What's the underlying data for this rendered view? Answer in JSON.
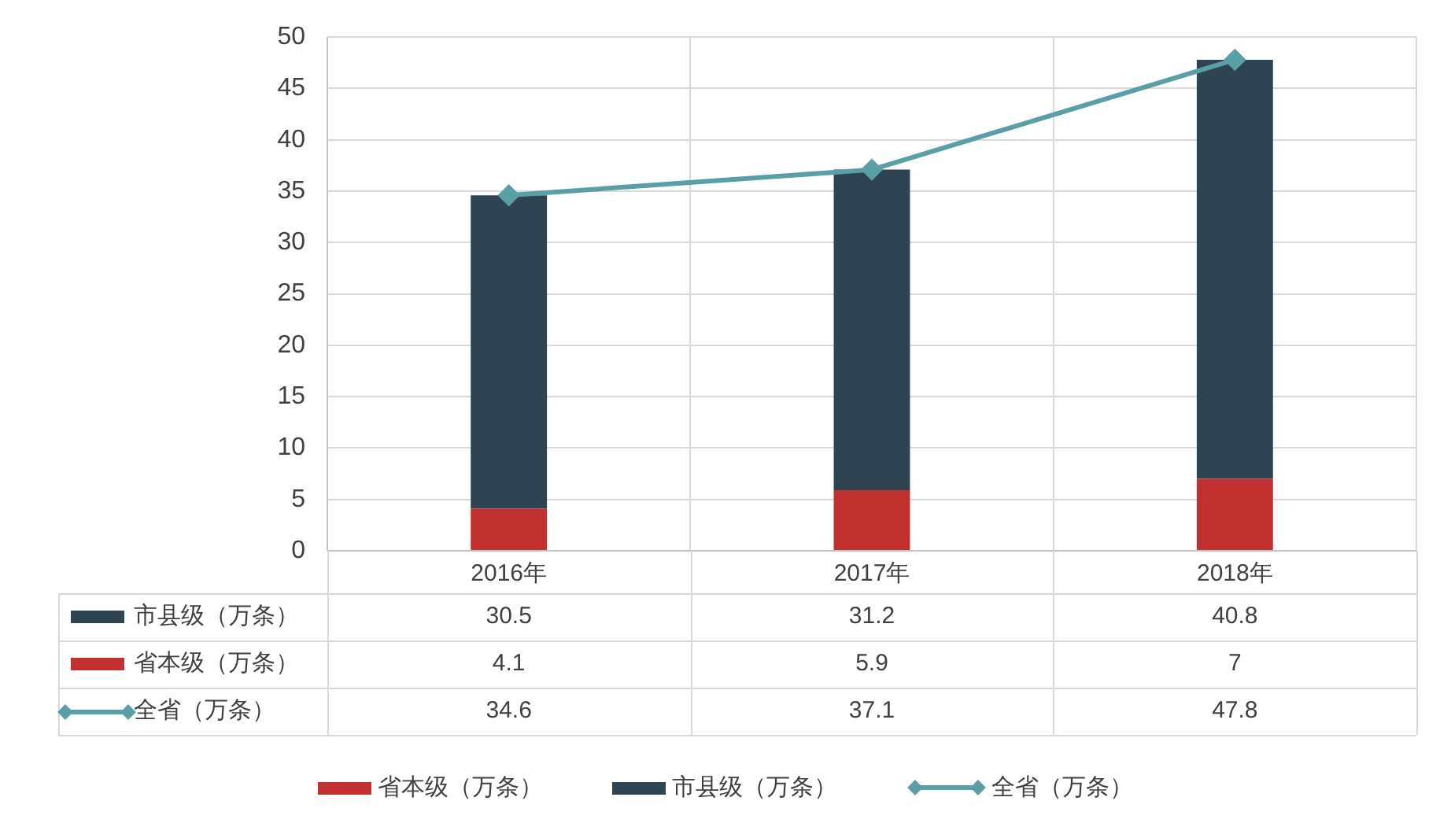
{
  "chart_data": {
    "type": "bar",
    "stacked": true,
    "categories": [
      "2016年",
      "2017年",
      "2018年"
    ],
    "series": [
      {
        "name": "省本级（万条）",
        "color": "#c0312f",
        "values": [
          4.1,
          5.9,
          7
        ]
      },
      {
        "name": "市县级（万条）",
        "color": "#2e4453",
        "values": [
          30.5,
          31.2,
          40.8
        ]
      },
      {
        "name": "全省（万条）",
        "type": "line",
        "color": "#5a9fa6",
        "values": [
          34.6,
          37.1,
          47.8
        ],
        "marker": "diamond"
      }
    ],
    "ylim": [
      0,
      50
    ],
    "yticks": [
      0,
      5,
      10,
      15,
      20,
      25,
      30,
      35,
      40,
      45,
      50
    ],
    "grid": true,
    "legend": "bottom",
    "data_labels": true
  }
}
